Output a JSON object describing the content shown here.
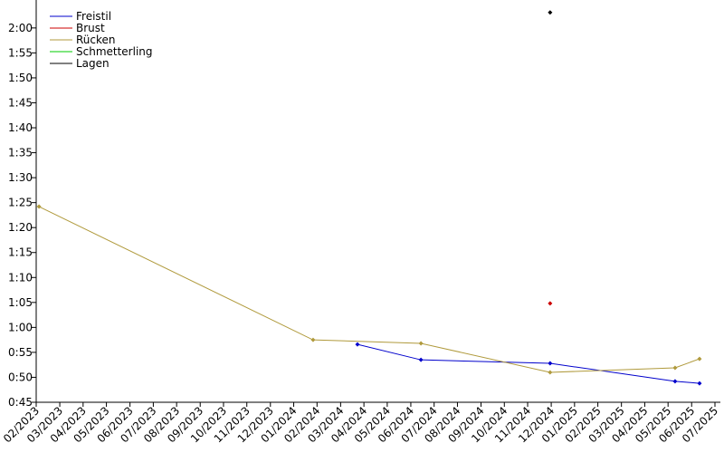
{
  "chart_data": {
    "type": "line",
    "series": [
      {
        "name": "Freistil",
        "color": "#0000cc",
        "x": [
          2024.227,
          2024.453,
          2024.913,
          2025.358,
          2025.445
        ],
        "values": [
          56.6,
          53.5,
          52.8,
          49.2,
          48.8
        ]
      },
      {
        "name": "Brust",
        "color": "#cc0000",
        "x": [
          2024.913
        ],
        "values": [
          64.8
        ]
      },
      {
        "name": "Rücken",
        "color": "#b09a3c",
        "x": [
          2023.093,
          2024.069,
          2024.453,
          2024.913,
          2025.358,
          2025.445
        ],
        "values": [
          84.2,
          57.5,
          56.8,
          51.0,
          51.9,
          53.7
        ]
      },
      {
        "name": "Schmetterling",
        "color": "#00cc00",
        "x": [],
        "values": []
      },
      {
        "name": "Lagen",
        "color": "#000000",
        "x": [
          2024.913
        ],
        "values": [
          123.1
        ]
      }
    ],
    "xlim": [
      2023.083,
      2025.5
    ],
    "xticks": [
      {
        "value": 2023.083,
        "label": "02/2023"
      },
      {
        "value": 2023.167,
        "label": "03/2023"
      },
      {
        "value": 2023.25,
        "label": "04/2023"
      },
      {
        "value": 2023.333,
        "label": "05/2023"
      },
      {
        "value": 2023.417,
        "label": "06/2023"
      },
      {
        "value": 2023.5,
        "label": "07/2023"
      },
      {
        "value": 2023.583,
        "label": "08/2023"
      },
      {
        "value": 2023.667,
        "label": "09/2023"
      },
      {
        "value": 2023.75,
        "label": "10/2023"
      },
      {
        "value": 2023.833,
        "label": "11/2023"
      },
      {
        "value": 2023.917,
        "label": "12/2023"
      },
      {
        "value": 2024.0,
        "label": "01/2024"
      },
      {
        "value": 2024.083,
        "label": "02/2024"
      },
      {
        "value": 2024.167,
        "label": "03/2024"
      },
      {
        "value": 2024.25,
        "label": "04/2024"
      },
      {
        "value": 2024.333,
        "label": "05/2024"
      },
      {
        "value": 2024.417,
        "label": "06/2024"
      },
      {
        "value": 2024.5,
        "label": "07/2024"
      },
      {
        "value": 2024.583,
        "label": "08/2024"
      },
      {
        "value": 2024.667,
        "label": "09/2024"
      },
      {
        "value": 2024.75,
        "label": "10/2024"
      },
      {
        "value": 2024.833,
        "label": "11/2024"
      },
      {
        "value": 2024.917,
        "label": "12/2024"
      },
      {
        "value": 2025.0,
        "label": "01/2025"
      },
      {
        "value": 2025.083,
        "label": "02/2025"
      },
      {
        "value": 2025.167,
        "label": "03/2025"
      },
      {
        "value": 2025.25,
        "label": "04/2025"
      },
      {
        "value": 2025.333,
        "label": "05/2025"
      },
      {
        "value": 2025.417,
        "label": "06/2025"
      },
      {
        "value": 2025.5,
        "label": "07/2025"
      }
    ],
    "ylim": [
      45,
      125.6
    ],
    "yticks": [
      {
        "value": 45,
        "label": "0:45"
      },
      {
        "value": 50,
        "label": "0:50"
      },
      {
        "value": 55,
        "label": "0:55"
      },
      {
        "value": 60,
        "label": "1:00"
      },
      {
        "value": 65,
        "label": "1:05"
      },
      {
        "value": 70,
        "label": "1:10"
      },
      {
        "value": 75,
        "label": "1:15"
      },
      {
        "value": 80,
        "label": "1:20"
      },
      {
        "value": 85,
        "label": "1:25"
      },
      {
        "value": 90,
        "label": "1:30"
      },
      {
        "value": 95,
        "label": "1:35"
      },
      {
        "value": 100,
        "label": "1:40"
      },
      {
        "value": 105,
        "label": "1:45"
      },
      {
        "value": 110,
        "label": "1:50"
      },
      {
        "value": 115,
        "label": "1:55"
      },
      {
        "value": 120,
        "label": "2:00"
      }
    ],
    "legend": "upper-left"
  }
}
